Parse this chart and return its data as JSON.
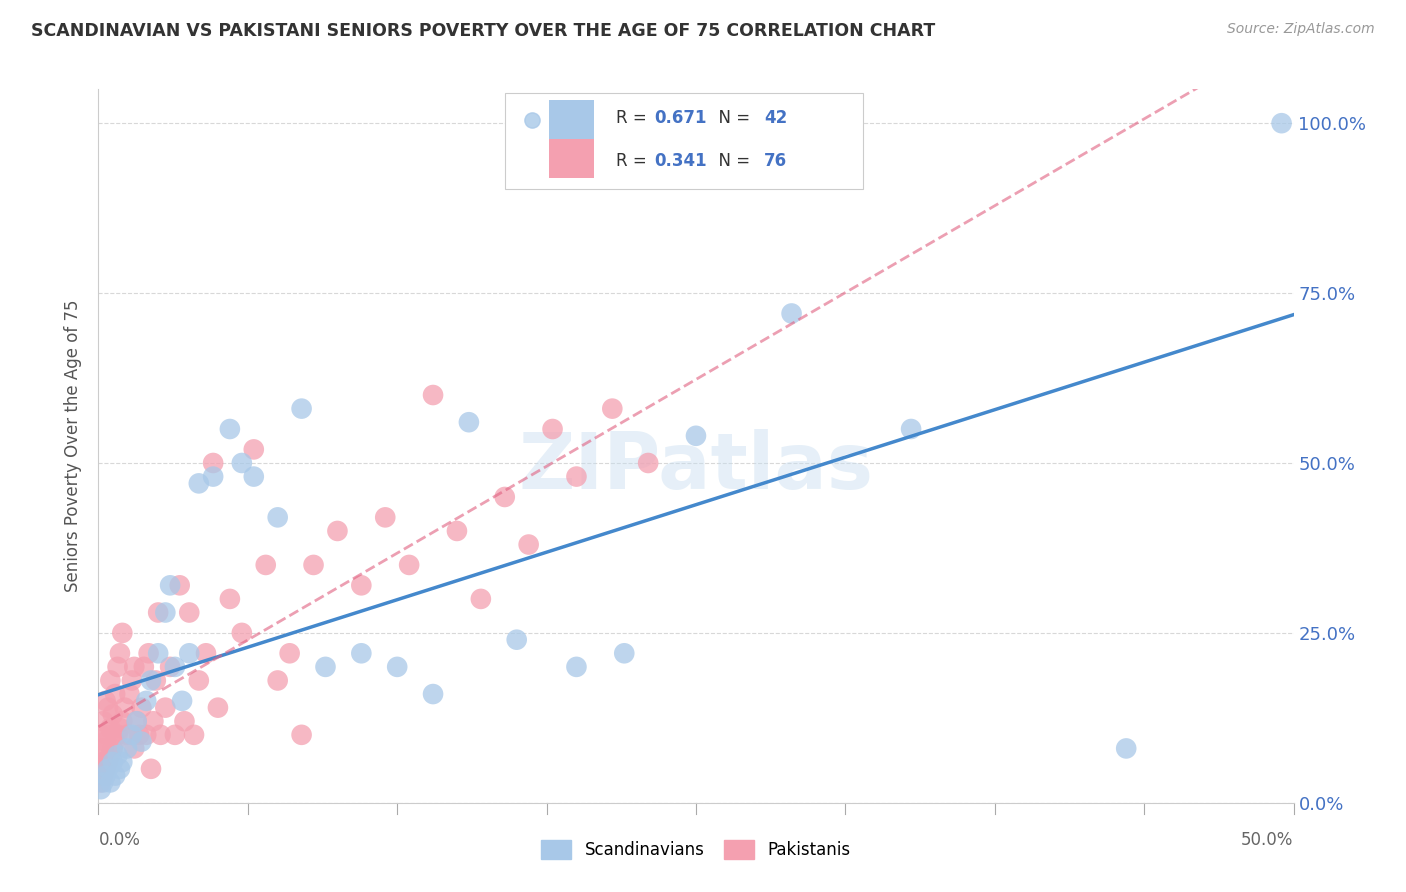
{
  "title": "SCANDINAVIAN VS PAKISTANI SENIORS POVERTY OVER THE AGE OF 75 CORRELATION CHART",
  "source": "Source: ZipAtlas.com",
  "ylabel": "Seniors Poverty Over the Age of 75",
  "xlim": [
    0.0,
    0.5
  ],
  "ylim": [
    0.0,
    1.05
  ],
  "yticks": [
    0.0,
    0.25,
    0.5,
    0.75,
    1.0
  ],
  "ytick_labels": [
    "0.0%",
    "25.0%",
    "50.0%",
    "75.0%",
    "100.0%"
  ],
  "watermark": "ZIPatlas",
  "scand_color": "#a8c8e8",
  "pakist_color": "#f4a0b0",
  "scand_line_color": "#4488cc",
  "pakist_line_color": "#e06080",
  "background_color": "#ffffff",
  "grid_color": "#d8d8d8",
  "scand_R": 0.671,
  "scand_N": 42,
  "pakist_R": 0.341,
  "pakist_N": 76,
  "scandinavians_x": [
    0.001,
    0.002,
    0.003,
    0.004,
    0.005,
    0.006,
    0.007,
    0.008,
    0.009,
    0.01,
    0.012,
    0.014,
    0.016,
    0.018,
    0.02,
    0.022,
    0.025,
    0.028,
    0.03,
    0.032,
    0.035,
    0.038,
    0.042,
    0.048,
    0.055,
    0.06,
    0.065,
    0.075,
    0.085,
    0.095,
    0.11,
    0.125,
    0.14,
    0.155,
    0.175,
    0.2,
    0.22,
    0.25,
    0.29,
    0.34,
    0.43,
    0.495
  ],
  "scandinavians_y": [
    0.02,
    0.03,
    0.04,
    0.05,
    0.03,
    0.06,
    0.04,
    0.07,
    0.05,
    0.06,
    0.08,
    0.1,
    0.12,
    0.09,
    0.15,
    0.18,
    0.22,
    0.28,
    0.32,
    0.2,
    0.15,
    0.22,
    0.47,
    0.48,
    0.55,
    0.5,
    0.48,
    0.42,
    0.58,
    0.2,
    0.22,
    0.2,
    0.16,
    0.56,
    0.24,
    0.2,
    0.22,
    0.54,
    0.72,
    0.55,
    0.08,
    1.0
  ],
  "pakistanis_x": [
    0.001,
    0.001,
    0.001,
    0.001,
    0.002,
    0.002,
    0.002,
    0.002,
    0.003,
    0.003,
    0.003,
    0.004,
    0.004,
    0.004,
    0.005,
    0.005,
    0.005,
    0.006,
    0.006,
    0.007,
    0.007,
    0.008,
    0.008,
    0.009,
    0.009,
    0.01,
    0.01,
    0.011,
    0.012,
    0.013,
    0.014,
    0.015,
    0.015,
    0.016,
    0.017,
    0.018,
    0.019,
    0.02,
    0.021,
    0.022,
    0.023,
    0.024,
    0.025,
    0.026,
    0.028,
    0.03,
    0.032,
    0.034,
    0.036,
    0.038,
    0.04,
    0.042,
    0.045,
    0.048,
    0.05,
    0.055,
    0.06,
    0.065,
    0.07,
    0.075,
    0.08,
    0.085,
    0.09,
    0.1,
    0.11,
    0.12,
    0.13,
    0.14,
    0.15,
    0.16,
    0.17,
    0.18,
    0.19,
    0.2,
    0.215,
    0.23
  ],
  "pakistanis_y": [
    0.03,
    0.05,
    0.07,
    0.1,
    0.04,
    0.06,
    0.08,
    0.12,
    0.05,
    0.09,
    0.15,
    0.06,
    0.1,
    0.14,
    0.07,
    0.11,
    0.18,
    0.08,
    0.13,
    0.09,
    0.16,
    0.1,
    0.2,
    0.11,
    0.22,
    0.12,
    0.25,
    0.14,
    0.1,
    0.16,
    0.18,
    0.08,
    0.2,
    0.12,
    0.1,
    0.14,
    0.2,
    0.1,
    0.22,
    0.05,
    0.12,
    0.18,
    0.28,
    0.1,
    0.14,
    0.2,
    0.1,
    0.32,
    0.12,
    0.28,
    0.1,
    0.18,
    0.22,
    0.5,
    0.14,
    0.3,
    0.25,
    0.52,
    0.35,
    0.18,
    0.22,
    0.1,
    0.35,
    0.4,
    0.32,
    0.42,
    0.35,
    0.6,
    0.4,
    0.3,
    0.45,
    0.38,
    0.55,
    0.48,
    0.58,
    0.5
  ]
}
